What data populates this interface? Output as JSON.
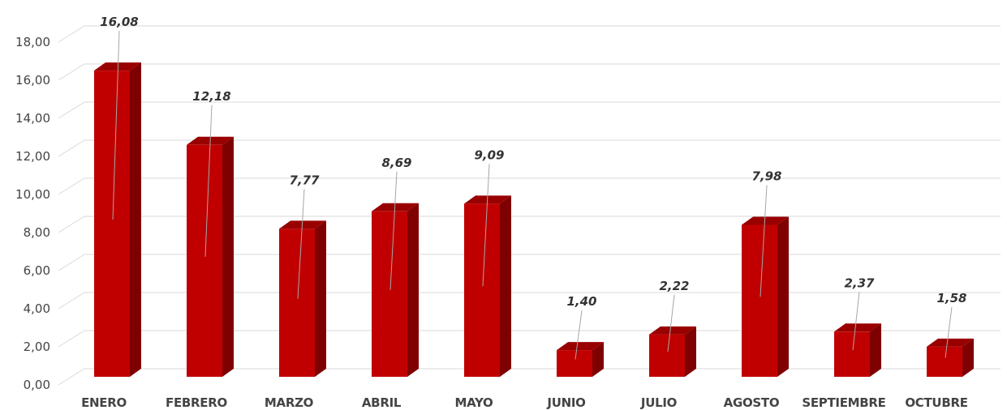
{
  "chart_data": {
    "type": "bar",
    "style": "3d-column",
    "categories": [
      "ENERO",
      "FEBRERO",
      "MARZO",
      "ABRIL",
      "MAYO",
      "JUNIO",
      "JULIO",
      "AGOSTO",
      "SEPTIEMBRE",
      "OCTUBRE"
    ],
    "values": [
      16.08,
      12.18,
      7.77,
      8.69,
      9.09,
      1.4,
      2.22,
      7.98,
      2.37,
      1.58
    ],
    "data_labels": [
      "16,08",
      "12,18",
      "7,77",
      "8,69",
      "9,09",
      "1,40",
      "2,22",
      "7,98",
      "2,37",
      "1,58"
    ],
    "yticks": [
      "0,00",
      "2,00",
      "4,00",
      "6,00",
      "8,00",
      "10,00",
      "12,00",
      "14,00",
      "16,00",
      "18,00"
    ],
    "ylim": [
      0,
      18
    ],
    "grid": true,
    "legend": "none",
    "colors": {
      "bar_front": "#c00000",
      "bar_side": "#7f0000",
      "bar_top": "#990000",
      "grid": "#d9d9d9"
    }
  }
}
